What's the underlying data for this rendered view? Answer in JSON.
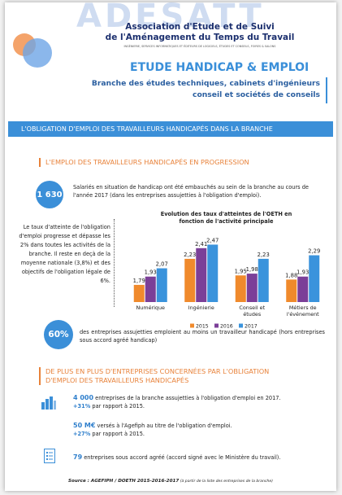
{
  "header": {
    "logo_text": "ADESATT",
    "association": [
      "Association d'Etude et de Suivi",
      "de l'Aménagement du Temps du Travail"
    ],
    "tagline": "INGÉNIERIE, SERVICES INFORMATIQUES ET ÉDITEURS DE LOGICIELS, ÉTUDES ET CONSEILS, FOIRES & SALONS",
    "title": "ETUDE HANDICAP & EMPLOI",
    "subtitle": [
      "Branche des études techniques, cabinets d'ingénieurs",
      "conseil et sociétés de conseils"
    ]
  },
  "banner": "L'OBLIGATION D'EMPLOI DES TRAVAILLEURS HANDICAPÉS DANS LA BRANCHE",
  "section1": {
    "heading": "L'EMPLOI DES TRAVAILLEURS HANDICAPÉS EN PROGRESSION",
    "stat": {
      "value": "1 630",
      "text": "Salariés en situation de handicap ont été embauchés au sein de la branche au cours de l'année 2017 (dans les entreprises assujetties à l'obligation d'emploi)."
    },
    "paragraph": "Le taux d'atteinte de l'obligation d'emploi progresse et dépasse les 2% dans toutes les activités de la branche. Il reste en deçà de la moyenne nationale (3,8%) et des objectifs de l'obligation légale de 6%.",
    "stat2": {
      "value": "60%",
      "text": "des entreprises assujetties emploient au moins un travailleur handicapé (hors entreprises sous accord agréé handicap)"
    }
  },
  "chart_data": {
    "type": "bar",
    "title": "Evolution des taux d'atteintes de l'OETH en fonction de l'activité principale",
    "categories": [
      "Numérique",
      "Ingénierie",
      "Conseil et études",
      "Métiers de l'événement"
    ],
    "ylim": [
      1.5,
      2.6
    ],
    "legend": "bottom",
    "series": [
      {
        "name": "2015",
        "color": "#f08a2c",
        "values": [
          1.79,
          2.23,
          1.95,
          1.88
        ],
        "value_labels": [
          "1,79",
          "2,23",
          "1,95",
          "1,88"
        ]
      },
      {
        "name": "2016",
        "color": "#7b3f98",
        "values": [
          1.93,
          2.41,
          1.98,
          1.93
        ],
        "value_labels": [
          "1,93",
          "2,41",
          "1,98",
          "1,93"
        ]
      },
      {
        "name": "2017",
        "color": "#3a93dc",
        "values": [
          2.07,
          2.47,
          2.23,
          2.29
        ],
        "value_labels": [
          "2,07",
          "2,47",
          "2,23",
          "2,29"
        ]
      }
    ]
  },
  "section2": {
    "heading": "DE PLUS EN PLUS D'ENTREPRISES CONCERNÉES PAR L'OBLIGATION D'EMPLOI DES TRAVAILLEURS HANDICAPÉS",
    "stats": [
      {
        "value": "4 000",
        "text": " entreprises de la branche assujetties à l'obligation d'emploi en 2017.",
        "change": "+31%",
        "change_text": " par rapport à 2015."
      },
      {
        "value": "50 M€",
        "text": " versés à l'Agefiph au titre de l'obligation d'emploi.",
        "change": "+27%",
        "change_text": " par rapport à 2015."
      },
      {
        "value": "79",
        "text": " entreprises sous accord agréé (accord signé avec le Ministère du travail)."
      }
    ]
  },
  "source": {
    "main": "Source : AGEFIPH / DOETH 2015-2016-2017",
    "note": " (à partir de la liste des entreprises de la branche)"
  }
}
